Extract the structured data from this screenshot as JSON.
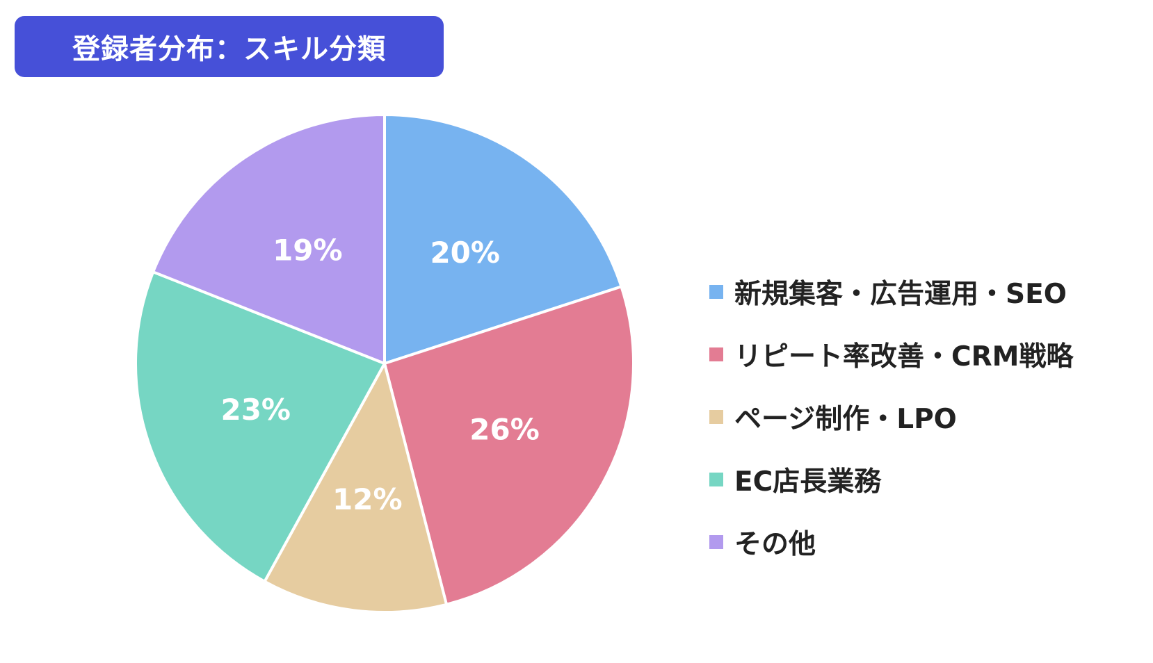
{
  "title": "登録者分布：スキル分類",
  "title_bg": "#4650d8",
  "chart_data": {
    "type": "pie",
    "title": "登録者分布：スキル分類",
    "start_angle_deg": 0,
    "direction": "clockwise",
    "legend_placement": "right",
    "slices": [
      {
        "label": "新規集客・広告運用・SEO",
        "value": 20,
        "value_label": "20%",
        "color": "#77b3f0"
      },
      {
        "label": "リピート率改善・CRM戦略",
        "value": 26,
        "value_label": "26%",
        "color": "#e37c93"
      },
      {
        "label": "ページ制作・LPO",
        "value": 12,
        "value_label": "12%",
        "color": "#e6cca0"
      },
      {
        "label": "EC店長業務",
        "value": 23,
        "value_label": "23%",
        "color": "#76d6c3"
      },
      {
        "label": "その他",
        "value": 19,
        "value_label": "19%",
        "color": "#b29aee"
      }
    ]
  }
}
